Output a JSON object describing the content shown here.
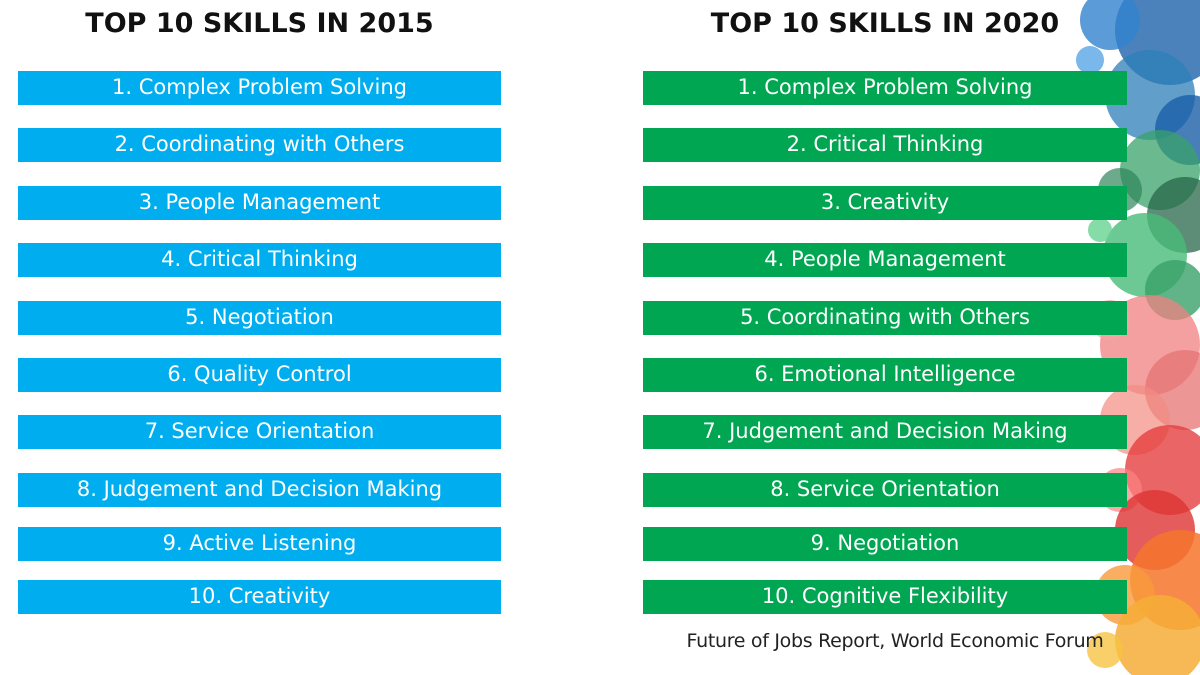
{
  "left_column": {
    "heading": "TOP 10 SKILLS IN 2015",
    "items": [
      "1. Complex Problem Solving",
      "2. Coordinating with Others",
      "3. People Management",
      "4. Critical Thinking",
      "5. Negotiation",
      "6. Quality Control",
      "7. Service Orientation",
      "8. Judgement and Decision Making",
      "9. Active Listening",
      "10. Creativity"
    ],
    "bar_color": "#00aeef"
  },
  "right_column": {
    "heading": "TOP 10 SKILLS IN 2020",
    "items": [
      "1. Complex Problem Solving",
      "2. Critical Thinking",
      "3. Creativity",
      "4. People Management",
      "5. Coordinating with Others",
      "6. Emotional Intelligence",
      "7. Judgement and Decision Making",
      "8. Service Orientation",
      "9. Negotiation",
      "10. Cognitive Flexibility"
    ],
    "bar_color": "#00a651"
  },
  "source": "Future of Jobs Report, World Economic Forum"
}
